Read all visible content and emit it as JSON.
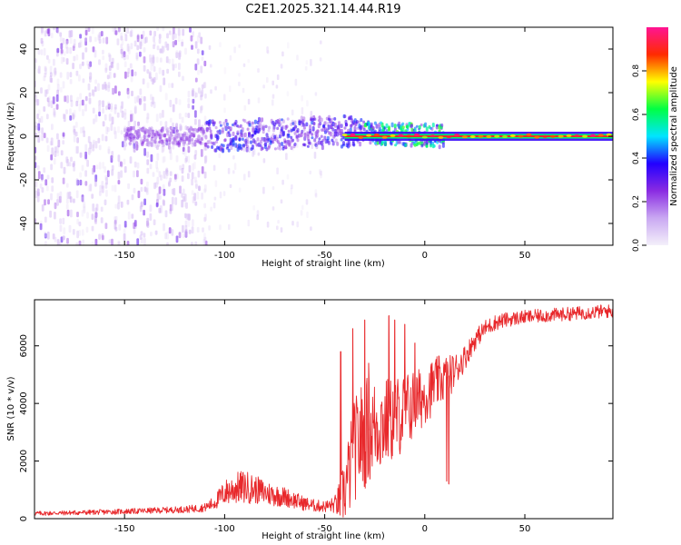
{
  "title": "C2E1.2025.321.14.44.R19",
  "colors": {
    "snr_line": "#e8282b",
    "center_band": "#e8282b",
    "axis": "#000000",
    "background": "#ffffff"
  },
  "chart_data": [
    {
      "type": "heatmap",
      "name": "spectrogram",
      "xlabel": "Height of straight line (km)",
      "ylabel": "Frequency (Hz)",
      "xlim": [
        -195,
        94
      ],
      "ylim": [
        -50,
        50
      ],
      "x_ticks": [
        -150,
        -100,
        -50,
        0,
        50
      ],
      "x_tick_labels": [
        "-150",
        "-100",
        "-50",
        "0",
        "50"
      ],
      "y_ticks": [
        -40,
        -20,
        0,
        20,
        40
      ],
      "y_tick_labels": [
        "-40",
        "-20",
        "0",
        "20",
        "40"
      ],
      "colorbar": {
        "label": "Normalized spectral amplitude",
        "range": [
          0,
          1
        ],
        "ticks": [
          0.0,
          0.2,
          0.4,
          0.6,
          0.8
        ],
        "tick_labels": [
          "0.0",
          "0.2",
          "0.4",
          "0.6",
          "0.8"
        ],
        "colormap": [
          "#f4f0fa",
          "#c9a8f2",
          "#8a2be2",
          "#2200ff",
          "#00e5ff",
          "#00ff44",
          "#ffff00",
          "#ff2b00",
          "#ff1493"
        ]
      },
      "regions": [
        {
          "x_range": [
            -195,
            -110
          ],
          "freq_spread": 50,
          "amplitude": 0.15,
          "description_level": "broadband noise"
        },
        {
          "x_range": [
            -110,
            -52
          ],
          "freq_spread": 45,
          "amplitude": 0.06,
          "description_level": "sparse noise"
        },
        {
          "x_range": [
            -150,
            10
          ],
          "freq_spread": 7,
          "amplitude": 0.35,
          "description_level": "signal band"
        },
        {
          "x_range": [
            -40,
            94
          ],
          "freq_spread": 1.5,
          "amplitude": 0.95,
          "description_level": "carrier"
        }
      ]
    },
    {
      "type": "line",
      "name": "snr",
      "xlabel": "Height of straight line (km)",
      "ylabel": "SNR (10 * v/v)",
      "xlim": [
        -195,
        94
      ],
      "ylim": [
        0,
        7600
      ],
      "x_ticks": [
        -150,
        -100,
        -50,
        0,
        50
      ],
      "x_tick_labels": [
        "-150",
        "-100",
        "-50",
        "0",
        "50"
      ],
      "y_ticks": [
        0,
        2000,
        4000,
        6000
      ],
      "y_tick_labels": [
        "0",
        "2000",
        "4000",
        "6000"
      ],
      "series": [
        {
          "name": "SNR trend",
          "x": [
            -195,
            -180,
            -160,
            -140,
            -120,
            -110,
            -105,
            -100,
            -95,
            -90,
            -85,
            -80,
            -75,
            -70,
            -65,
            -60,
            -55,
            -50,
            -45,
            -42,
            -40,
            -37,
            -35,
            -32,
            -30,
            -27,
            -25,
            -22,
            -20,
            -17,
            -15,
            -12,
            -10,
            -7,
            -5,
            -2,
            0,
            3,
            5,
            8,
            10,
            13,
            15,
            18,
            20,
            25,
            30,
            35,
            40,
            50,
            60,
            70,
            80,
            90,
            94
          ],
          "values": [
            180,
            200,
            230,
            270,
            320,
            380,
            560,
            900,
            1050,
            1100,
            1020,
            900,
            820,
            760,
            640,
            520,
            450,
            420,
            480,
            650,
            1000,
            1800,
            2400,
            2800,
            3000,
            3100,
            3200,
            3300,
            3350,
            3400,
            3500,
            3600,
            3750,
            3900,
            4000,
            4150,
            4300,
            4500,
            4700,
            4800,
            4900,
            5000,
            5150,
            5400,
            5600,
            6200,
            6600,
            6800,
            6900,
            7000,
            7050,
            7100,
            7150,
            7200,
            7200
          ],
          "noise": [
            80,
            80,
            90,
            100,
            120,
            150,
            250,
            450,
            550,
            600,
            500,
            450,
            400,
            350,
            300,
            250,
            220,
            200,
            300,
            800,
            1200,
            1600,
            1800,
            1900,
            2000,
            1800,
            1700,
            1700,
            1600,
            1500,
            1500,
            1400,
            1300,
            1300,
            1200,
            1100,
            1000,
            1000,
            900,
            900,
            800,
            700,
            600,
            500,
            450,
            350,
            300,
            280,
            260,
            240,
            240,
            240,
            240,
            240,
            240
          ]
        }
      ],
      "spikes": [
        {
          "x": -42,
          "value": 5800
        },
        {
          "x": -36,
          "value": 6600
        },
        {
          "x": -30,
          "value": 6900
        },
        {
          "x": -28,
          "value": 5400
        },
        {
          "x": -18,
          "value": 7050
        },
        {
          "x": -15,
          "value": 6900
        },
        {
          "x": -10,
          "value": 6750
        },
        {
          "x": -5,
          "value": 6100
        },
        {
          "x": 11,
          "value": 1300
        },
        {
          "x": 12,
          "value": 1200
        }
      ]
    }
  ]
}
